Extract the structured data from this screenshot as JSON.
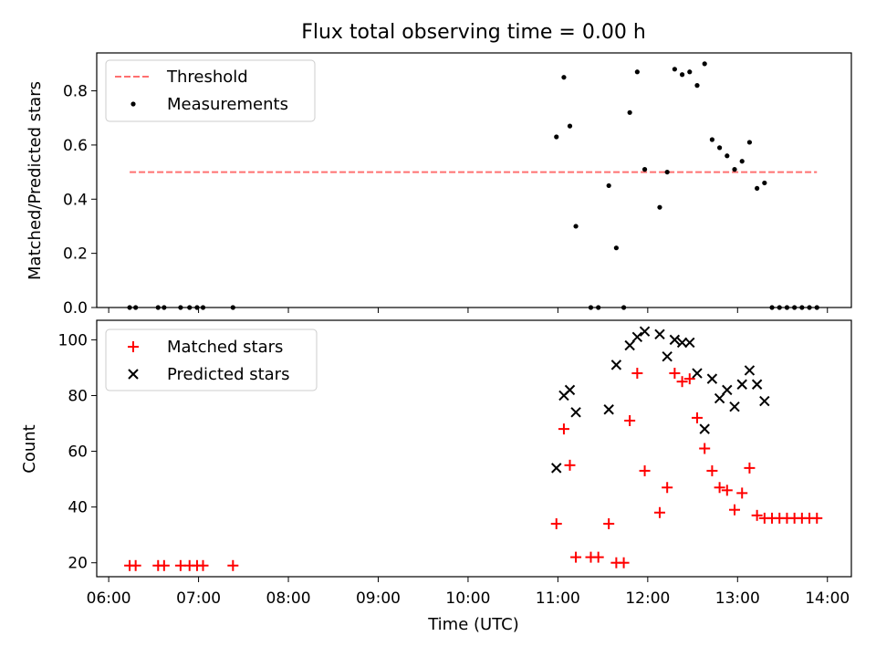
{
  "chart_data": [
    {
      "type": "scatter",
      "title": "Flux total observing time = 0.00 h",
      "xlabel": "",
      "ylabel": "Matched/Predicted stars",
      "xlim": [
        "05:52",
        "14:16"
      ],
      "ylim": [
        0,
        0.94
      ],
      "yticks": [
        "0.0",
        "0.2",
        "0.4",
        "0.6",
        "0.8"
      ],
      "grid": false,
      "legend_position": "top-left",
      "threshold": {
        "name": "Threshold",
        "value": 0.5,
        "x_range": [
          "06:14",
          "13:53"
        ],
        "color": "#ff7070",
        "style": "dashed"
      },
      "series": [
        {
          "name": "Measurements",
          "marker": "dot",
          "color": "#000000",
          "points": [
            [
              "06:14",
              0.0
            ],
            [
              "06:18",
              0.0
            ],
            [
              "06:33",
              0.0
            ],
            [
              "06:37",
              0.0
            ],
            [
              "06:48",
              0.0
            ],
            [
              "06:54",
              0.0
            ],
            [
              "06:59",
              0.0
            ],
            [
              "07:03",
              0.0
            ],
            [
              "07:23",
              0.0
            ],
            [
              "10:59",
              0.63
            ],
            [
              "11:04",
              0.85
            ],
            [
              "11:08",
              0.67
            ],
            [
              "11:12",
              0.3
            ],
            [
              "11:22",
              0.0
            ],
            [
              "11:27",
              0.0
            ],
            [
              "11:34",
              0.45
            ],
            [
              "11:39",
              0.22
            ],
            [
              "11:44",
              0.0
            ],
            [
              "11:48",
              0.72
            ],
            [
              "11:53",
              0.87
            ],
            [
              "11:58",
              0.51
            ],
            [
              "12:08",
              0.37
            ],
            [
              "12:13",
              0.5
            ],
            [
              "12:18",
              0.88
            ],
            [
              "12:23",
              0.86
            ],
            [
              "12:28",
              0.87
            ],
            [
              "12:33",
              0.82
            ],
            [
              "12:38",
              0.9
            ],
            [
              "12:43",
              0.62
            ],
            [
              "12:48",
              0.59
            ],
            [
              "12:53",
              0.56
            ],
            [
              "12:58",
              0.51
            ],
            [
              "13:03",
              0.54
            ],
            [
              "13:08",
              0.61
            ],
            [
              "13:13",
              0.44
            ],
            [
              "13:18",
              0.46
            ],
            [
              "13:23",
              0.0
            ],
            [
              "13:28",
              0.0
            ],
            [
              "13:33",
              0.0
            ],
            [
              "13:38",
              0.0
            ],
            [
              "13:43",
              0.0
            ],
            [
              "13:48",
              0.0
            ],
            [
              "13:53",
              0.0
            ]
          ]
        }
      ]
    },
    {
      "type": "scatter",
      "title": "",
      "xlabel": "Time (UTC)",
      "ylabel": "Count",
      "xlim": [
        "05:52",
        "14:16"
      ],
      "ylim": [
        15,
        107
      ],
      "yticks": [
        "20",
        "40",
        "60",
        "80",
        "100"
      ],
      "xticks": [
        "06:00",
        "07:00",
        "08:00",
        "09:00",
        "10:00",
        "11:00",
        "12:00",
        "13:00",
        "14:00"
      ],
      "grid": false,
      "legend_position": "top-left",
      "series": [
        {
          "name": "Matched stars",
          "marker": "plus",
          "color": "#ff0000",
          "points": [
            [
              "06:14",
              19
            ],
            [
              "06:18",
              19
            ],
            [
              "06:33",
              19
            ],
            [
              "06:37",
              19
            ],
            [
              "06:48",
              19
            ],
            [
              "06:54",
              19
            ],
            [
              "06:59",
              19
            ],
            [
              "07:03",
              19
            ],
            [
              "07:23",
              19
            ],
            [
              "10:59",
              34
            ],
            [
              "11:04",
              68
            ],
            [
              "11:08",
              55
            ],
            [
              "11:12",
              22
            ],
            [
              "11:22",
              22
            ],
            [
              "11:27",
              22
            ],
            [
              "11:34",
              34
            ],
            [
              "11:39",
              20
            ],
            [
              "11:44",
              20
            ],
            [
              "11:48",
              71
            ],
            [
              "11:53",
              88
            ],
            [
              "11:58",
              53
            ],
            [
              "12:08",
              38
            ],
            [
              "12:13",
              47
            ],
            [
              "12:18",
              88
            ],
            [
              "12:23",
              85
            ],
            [
              "12:28",
              86
            ],
            [
              "12:33",
              72
            ],
            [
              "12:38",
              61
            ],
            [
              "12:43",
              53
            ],
            [
              "12:48",
              47
            ],
            [
              "12:53",
              46
            ],
            [
              "12:58",
              39
            ],
            [
              "13:03",
              45
            ],
            [
              "13:08",
              54
            ],
            [
              "13:13",
              37
            ],
            [
              "13:18",
              36
            ],
            [
              "13:23",
              36
            ],
            [
              "13:28",
              36
            ],
            [
              "13:33",
              36
            ],
            [
              "13:38",
              36
            ],
            [
              "13:43",
              36
            ],
            [
              "13:48",
              36
            ],
            [
              "13:53",
              36
            ]
          ]
        },
        {
          "name": "Predicted stars",
          "marker": "x",
          "color": "#000000",
          "points": [
            [
              "10:59",
              54
            ],
            [
              "11:04",
              80
            ],
            [
              "11:08",
              82
            ],
            [
              "11:12",
              74
            ],
            [
              "11:34",
              75
            ],
            [
              "11:39",
              91
            ],
            [
              "11:48",
              98
            ],
            [
              "11:53",
              101
            ],
            [
              "11:58",
              103
            ],
            [
              "12:08",
              102
            ],
            [
              "12:13",
              94
            ],
            [
              "12:18",
              100
            ],
            [
              "12:23",
              99
            ],
            [
              "12:28",
              99
            ],
            [
              "12:33",
              88
            ],
            [
              "12:38",
              68
            ],
            [
              "12:43",
              86
            ],
            [
              "12:48",
              79
            ],
            [
              "12:53",
              82
            ],
            [
              "12:58",
              76
            ],
            [
              "13:03",
              84
            ],
            [
              "13:08",
              89
            ],
            [
              "13:13",
              84
            ],
            [
              "13:18",
              78
            ]
          ]
        }
      ]
    }
  ]
}
